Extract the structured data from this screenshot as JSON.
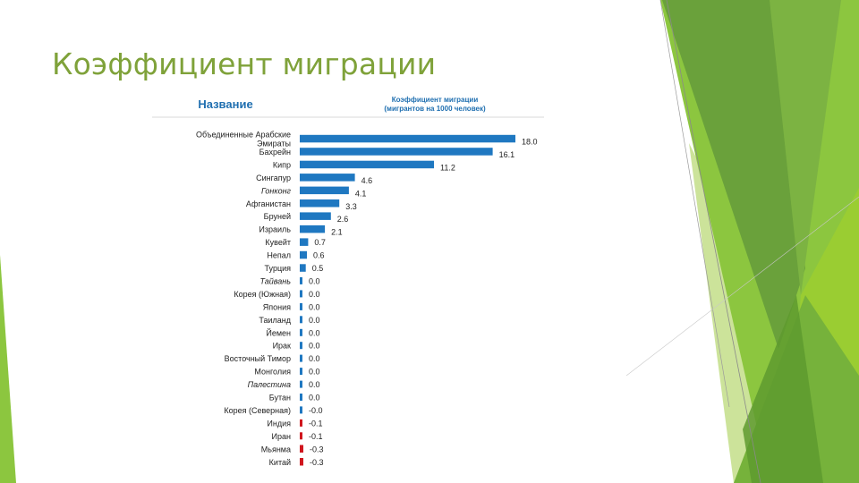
{
  "slide": {
    "title": "Коэффициент миграции"
  },
  "colors": {
    "positive": "#1f78c1",
    "negative": "#d0161e",
    "title": "#7fa23a",
    "header": "#1f6fb0"
  },
  "chart_data": {
    "type": "bar",
    "orientation": "horizontal",
    "header_name": "Название",
    "header_value_line1": "Коэффициент миграции",
    "header_value_line2": "(мигрантов на 1000 человек)",
    "categories": [
      [
        "Объединенные Арабские",
        "Эмираты"
      ],
      [
        "Бахрейн"
      ],
      [
        "Кипр"
      ],
      [
        "Сингапур"
      ],
      [
        "Гонконг"
      ],
      [
        "Афганистан"
      ],
      [
        "Бруней"
      ],
      [
        "Израиль"
      ],
      [
        "Кувейт"
      ],
      [
        "Непал"
      ],
      [
        "Турция"
      ],
      [
        "Тайвань"
      ],
      [
        "Корея (Южная)"
      ],
      [
        "Япония"
      ],
      [
        "Таиланд"
      ],
      [
        "Йемен"
      ],
      [
        "Ирак"
      ],
      [
        "Восточный Тимор"
      ],
      [
        "Монголия"
      ],
      [
        "Палестина"
      ],
      [
        "Бутан"
      ],
      [
        "Корея (Северная)"
      ],
      [
        "Индия"
      ],
      [
        "Иран"
      ],
      [
        "Мьянма"
      ],
      [
        "Китай"
      ]
    ],
    "italic_categories": [
      "Гонконг",
      "Тайвань",
      "Палестина"
    ],
    "values": [
      18.0,
      16.1,
      11.2,
      4.6,
      4.1,
      3.3,
      2.6,
      2.1,
      0.7,
      0.6,
      0.5,
      0.0,
      0.0,
      0.0,
      0.0,
      0.0,
      0.0,
      0.0,
      0.0,
      0.0,
      0.0,
      0.0,
      -0.1,
      -0.1,
      -0.3,
      -0.3
    ],
    "value_labels": [
      "18.0",
      "16.1",
      "11.2",
      "4.6",
      "4.1",
      "3.3",
      "2.6",
      "2.1",
      "0.7",
      "0.6",
      "0.5",
      "0.0",
      "0.0",
      "0.0",
      "0.0",
      "0.0",
      "0.0",
      "0.0",
      "0.0",
      "0.0",
      "0.0",
      "-0.0",
      "-0.1",
      "-0.1",
      "-0.3",
      "-0.3"
    ],
    "xlim": [
      0,
      18
    ]
  }
}
